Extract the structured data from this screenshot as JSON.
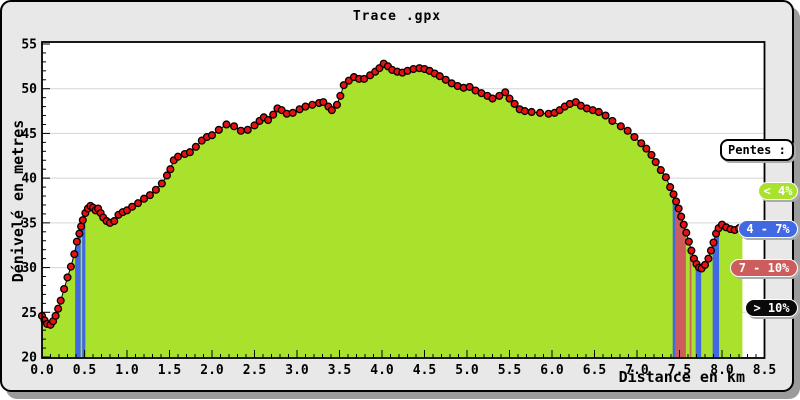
{
  "window": {
    "title": "Trace .gpx"
  },
  "chart_data": {
    "type": "area",
    "title": "Trace .gpx",
    "xlabel": "Distance en km",
    "ylabel": "Dénivelé en metres",
    "xlim": [
      0,
      8.5
    ],
    "ylim": [
      20,
      55
    ],
    "x_major_step": 0.5,
    "x_minor_step": 0.1,
    "y_major_step": 5,
    "y_minor_step": 1,
    "x_tick_labels": [
      "0.0",
      "0.5",
      "1.0",
      "1.5",
      "2.0",
      "2.5",
      "3.0",
      "3.5",
      "4.0",
      "4.5",
      "5.0",
      "5.5",
      "6.0",
      "6.5",
      "7.0",
      "7.5",
      "8.0",
      "8.5"
    ],
    "y_tick_labels": [
      "20",
      "25",
      "30",
      "35",
      "40",
      "45",
      "50",
      "55"
    ],
    "grid": "horizontal-only",
    "legend": {
      "title": "Pentes :",
      "position": "right",
      "items": [
        {
          "label": "< 4%",
          "color": "#A8E22C"
        },
        {
          "label": "4 - 7%",
          "color": "#4169E1"
        },
        {
          "label": "7 - 10%",
          "color": "#CD5C5C"
        },
        {
          "label": "> 10%",
          "color": "#0A0A0A"
        }
      ]
    },
    "colors": {
      "area_fill": "#A8E22C",
      "line": "#000000",
      "marker_fill": "#E81111",
      "marker_stroke": "#000000",
      "grid": "#D5D5D5",
      "plot_bg": "#FFFFFF",
      "frame": "#000000",
      "window_bg": "#E8E8E8"
    },
    "slope_segments_km": [
      {
        "from": 0.39,
        "to": 0.455,
        "category": "4 - 7%"
      },
      {
        "from": 0.472,
        "to": 0.51,
        "category": "4 - 7%"
      },
      {
        "from": 7.42,
        "to": 7.455,
        "category": "4 - 7%"
      },
      {
        "from": 7.455,
        "to": 7.575,
        "category": "7 - 10%"
      },
      {
        "from": 7.62,
        "to": 7.64,
        "category": "7 - 10%"
      },
      {
        "from": 7.69,
        "to": 7.755,
        "category": "4 - 7%"
      },
      {
        "from": 7.89,
        "to": 7.965,
        "category": "4 - 7%"
      }
    ],
    "points": [
      [
        0.0,
        24.6
      ],
      [
        0.03,
        24.1
      ],
      [
        0.06,
        23.7
      ],
      [
        0.1,
        23.6
      ],
      [
        0.13,
        24.0
      ],
      [
        0.16,
        24.6
      ],
      [
        0.19,
        25.4
      ],
      [
        0.22,
        26.3
      ],
      [
        0.26,
        27.6
      ],
      [
        0.3,
        28.9
      ],
      [
        0.34,
        30.1
      ],
      [
        0.38,
        31.5
      ],
      [
        0.41,
        32.9
      ],
      [
        0.44,
        33.8
      ],
      [
        0.46,
        34.6
      ],
      [
        0.48,
        35.3
      ],
      [
        0.51,
        36.1
      ],
      [
        0.54,
        36.6
      ],
      [
        0.57,
        36.9
      ],
      [
        0.6,
        36.7
      ],
      [
        0.63,
        36.4
      ],
      [
        0.66,
        36.6
      ],
      [
        0.69,
        36.1
      ],
      [
        0.72,
        35.6
      ],
      [
        0.76,
        35.2
      ],
      [
        0.8,
        35.0
      ],
      [
        0.85,
        35.2
      ],
      [
        0.9,
        35.9
      ],
      [
        0.95,
        36.2
      ],
      [
        1.0,
        36.4
      ],
      [
        1.06,
        36.8
      ],
      [
        1.13,
        37.2
      ],
      [
        1.2,
        37.7
      ],
      [
        1.27,
        38.1
      ],
      [
        1.34,
        38.7
      ],
      [
        1.41,
        39.4
      ],
      [
        1.47,
        40.3
      ],
      [
        1.51,
        41.0
      ],
      [
        1.55,
        42.0
      ],
      [
        1.6,
        42.4
      ],
      [
        1.68,
        42.7
      ],
      [
        1.74,
        42.9
      ],
      [
        1.81,
        43.5
      ],
      [
        1.88,
        44.2
      ],
      [
        1.94,
        44.6
      ],
      [
        2.0,
        44.8
      ],
      [
        2.08,
        45.4
      ],
      [
        2.17,
        46.0
      ],
      [
        2.26,
        45.8
      ],
      [
        2.34,
        45.3
      ],
      [
        2.42,
        45.4
      ],
      [
        2.5,
        45.9
      ],
      [
        2.56,
        46.4
      ],
      [
        2.61,
        46.8
      ],
      [
        2.66,
        46.5
      ],
      [
        2.72,
        47.1
      ],
      [
        2.77,
        47.8
      ],
      [
        2.82,
        47.6
      ],
      [
        2.88,
        47.2
      ],
      [
        2.95,
        47.3
      ],
      [
        3.03,
        47.7
      ],
      [
        3.1,
        48.0
      ],
      [
        3.18,
        48.2
      ],
      [
        3.26,
        48.4
      ],
      [
        3.31,
        48.5
      ],
      [
        3.37,
        48.0
      ],
      [
        3.41,
        47.6
      ],
      [
        3.47,
        48.2
      ],
      [
        3.51,
        49.2
      ],
      [
        3.55,
        50.4
      ],
      [
        3.61,
        50.9
      ],
      [
        3.67,
        51.3
      ],
      [
        3.73,
        51.1
      ],
      [
        3.79,
        51.1
      ],
      [
        3.86,
        51.5
      ],
      [
        3.92,
        51.9
      ],
      [
        3.97,
        52.3
      ],
      [
        4.02,
        52.8
      ],
      [
        4.07,
        52.5
      ],
      [
        4.12,
        52.1
      ],
      [
        4.18,
        51.9
      ],
      [
        4.24,
        51.8
      ],
      [
        4.3,
        52.0
      ],
      [
        4.37,
        52.2
      ],
      [
        4.44,
        52.3
      ],
      [
        4.5,
        52.2
      ],
      [
        4.56,
        52.0
      ],
      [
        4.62,
        51.7
      ],
      [
        4.68,
        51.4
      ],
      [
        4.75,
        51.0
      ],
      [
        4.82,
        50.6
      ],
      [
        4.89,
        50.3
      ],
      [
        4.96,
        50.1
      ],
      [
        5.03,
        50.2
      ],
      [
        5.1,
        49.8
      ],
      [
        5.17,
        49.5
      ],
      [
        5.24,
        49.2
      ],
      [
        5.3,
        48.9
      ],
      [
        5.38,
        49.2
      ],
      [
        5.45,
        49.6
      ],
      [
        5.5,
        48.9
      ],
      [
        5.56,
        48.3
      ],
      [
        5.62,
        47.7
      ],
      [
        5.68,
        47.5
      ],
      [
        5.76,
        47.4
      ],
      [
        5.86,
        47.3
      ],
      [
        5.96,
        47.2
      ],
      [
        6.03,
        47.3
      ],
      [
        6.09,
        47.6
      ],
      [
        6.15,
        48.0
      ],
      [
        6.21,
        48.3
      ],
      [
        6.28,
        48.5
      ],
      [
        6.34,
        48.1
      ],
      [
        6.41,
        47.8
      ],
      [
        6.48,
        47.6
      ],
      [
        6.55,
        47.4
      ],
      [
        6.63,
        47.0
      ],
      [
        6.71,
        46.4
      ],
      [
        6.81,
        45.8
      ],
      [
        6.89,
        45.3
      ],
      [
        6.97,
        44.6
      ],
      [
        7.05,
        43.9
      ],
      [
        7.11,
        43.3
      ],
      [
        7.17,
        42.6
      ],
      [
        7.22,
        41.8
      ],
      [
        7.28,
        40.9
      ],
      [
        7.34,
        40.1
      ],
      [
        7.39,
        39.0
      ],
      [
        7.43,
        38.2
      ],
      [
        7.46,
        37.4
      ],
      [
        7.49,
        36.6
      ],
      [
        7.52,
        35.7
      ],
      [
        7.55,
        34.8
      ],
      [
        7.58,
        33.9
      ],
      [
        7.61,
        32.9
      ],
      [
        7.64,
        31.9
      ],
      [
        7.67,
        31.0
      ],
      [
        7.7,
        30.4
      ],
      [
        7.73,
        30.0
      ],
      [
        7.76,
        29.9
      ],
      [
        7.8,
        30.3
      ],
      [
        7.84,
        31.0
      ],
      [
        7.87,
        31.9
      ],
      [
        7.9,
        32.8
      ],
      [
        7.93,
        33.8
      ],
      [
        7.96,
        34.4
      ],
      [
        8.0,
        34.8
      ],
      [
        8.05,
        34.5
      ],
      [
        8.1,
        34.3
      ],
      [
        8.15,
        34.2
      ],
      [
        8.2,
        34.4
      ],
      [
        8.24,
        34.6
      ]
    ]
  }
}
